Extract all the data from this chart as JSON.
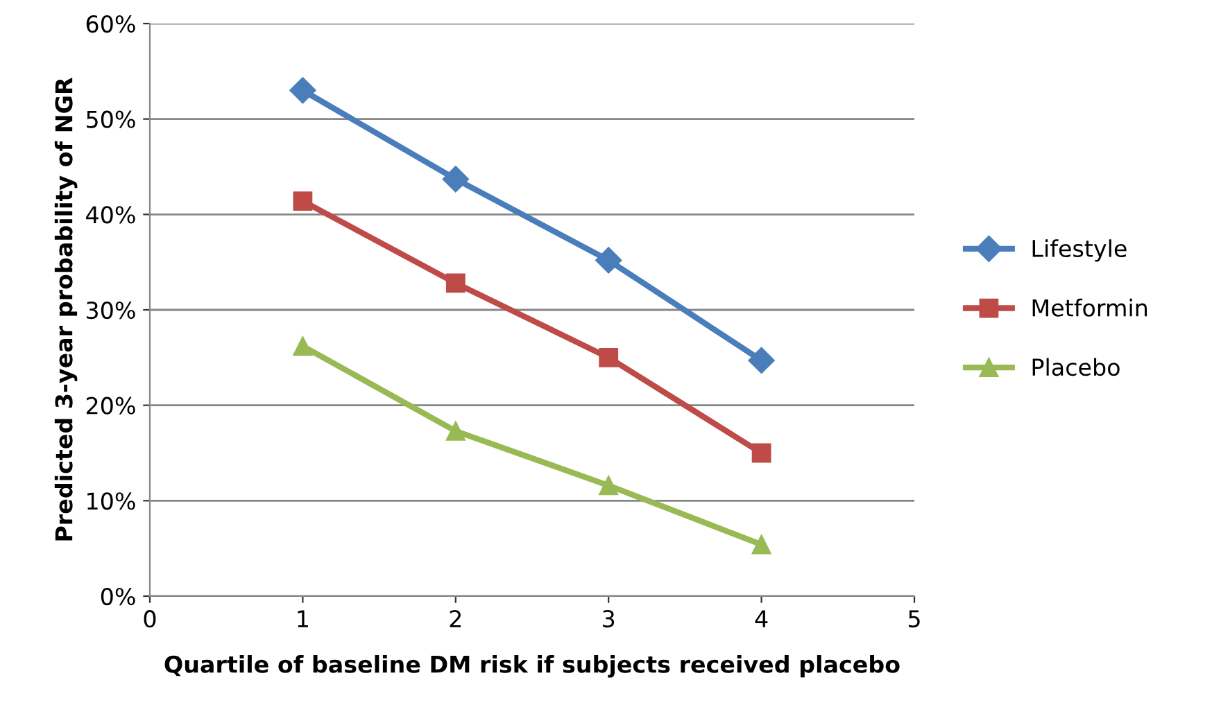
{
  "chart_data": {
    "type": "line",
    "xlabel": "Quartile of baseline DM risk if subjects received placebo",
    "ylabel": "Predicted 3-year probability of NGR",
    "x": [
      1,
      2,
      3,
      4
    ],
    "series": [
      {
        "name": "Lifestyle",
        "color": "#4a7ebb",
        "marker": "diamond",
        "values": [
          53,
          43.7,
          35.2,
          24.7
        ]
      },
      {
        "name": "Metformin",
        "color": "#be4b48",
        "marker": "square",
        "values": [
          41.4,
          32.8,
          25,
          15
        ]
      },
      {
        "name": "Placebo",
        "color": "#98b954",
        "marker": "triangle",
        "values": [
          26.2,
          17.3,
          11.6,
          5.4
        ]
      }
    ],
    "xlim": [
      0,
      5
    ],
    "xticks": [
      0,
      1,
      2,
      3,
      4,
      5
    ],
    "ylim": [
      0,
      60
    ],
    "yticks": [
      {
        "value": 0,
        "label": "0%"
      },
      {
        "value": 10,
        "label": "10%"
      },
      {
        "value": 20,
        "label": "20%"
      },
      {
        "value": 30,
        "label": "30%"
      },
      {
        "value": 40,
        "label": "40%"
      },
      {
        "value": 50,
        "label": "50%"
      },
      {
        "value": 60,
        "label": "60%"
      }
    ],
    "grid": "y",
    "legend": "right",
    "line_style": "solid"
  }
}
